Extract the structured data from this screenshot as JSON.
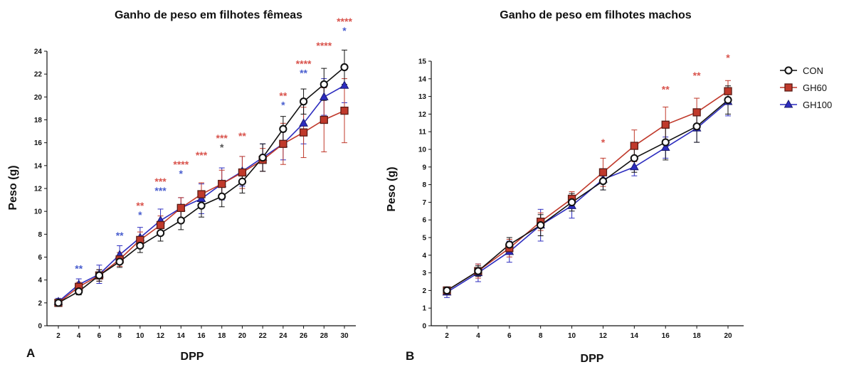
{
  "colors": {
    "con": "#111111",
    "gh60": "#c0392b",
    "gh100": "#2c2cbf",
    "sig_red": "#d9544d",
    "sig_blue": "#4a5fcf",
    "sig_dark": "#555555"
  },
  "legend": {
    "items": [
      {
        "name": "CON",
        "marker": "circle-open",
        "color": "#111111"
      },
      {
        "name": "GH60",
        "marker": "square",
        "color": "#c0392b"
      },
      {
        "name": "GH100",
        "marker": "triangle",
        "color": "#2c2cbf"
      }
    ]
  },
  "chart_data": [
    {
      "type": "line",
      "panel": "A",
      "title": "Ganho de peso em filhotes fêmeas",
      "xlabel": "DPP",
      "ylabel": "Peso (g)",
      "x": [
        2,
        4,
        6,
        8,
        10,
        12,
        14,
        16,
        18,
        20,
        22,
        24,
        26,
        28,
        30
      ],
      "ylim": [
        0,
        24
      ],
      "yticks": [
        0,
        2,
        4,
        6,
        8,
        10,
        12,
        14,
        16,
        18,
        20,
        22,
        24
      ],
      "series": [
        {
          "name": "CON",
          "values": [
            2.0,
            3.0,
            4.4,
            5.6,
            7.0,
            8.1,
            9.2,
            10.5,
            11.3,
            12.6,
            14.7,
            17.2,
            19.6,
            21.1,
            22.6
          ],
          "errors": [
            0.3,
            0.3,
            0.5,
            0.5,
            0.6,
            0.7,
            0.8,
            1.0,
            0.9,
            1.0,
            1.2,
            1.1,
            1.1,
            1.4,
            1.5
          ]
        },
        {
          "name": "GH60",
          "values": [
            2.0,
            3.4,
            4.4,
            5.8,
            7.5,
            8.8,
            10.3,
            11.5,
            12.4,
            13.4,
            14.5,
            15.9,
            16.9,
            18.0,
            18.8
          ],
          "errors": [
            0.3,
            0.4,
            0.5,
            0.6,
            0.7,
            0.8,
            0.9,
            1.0,
            1.2,
            1.4,
            1.0,
            1.8,
            2.2,
            2.8,
            2.8
          ]
        },
        {
          "name": "GH100",
          "values": [
            2.1,
            3.6,
            4.5,
            6.2,
            7.7,
            9.2,
            10.3,
            11.1,
            12.4,
            13.5,
            14.7,
            15.9,
            17.7,
            20.0,
            21.0
          ],
          "errors": [
            0.3,
            0.5,
            0.8,
            0.8,
            0.9,
            1.0,
            0.9,
            1.3,
            1.4,
            1.3,
            1.2,
            1.4,
            1.8,
            1.6,
            1.5
          ]
        }
      ],
      "annotations": [
        {
          "x": 4,
          "y": 4.7,
          "stars": [
            "**"
          ],
          "colors": [
            "sig_blue"
          ]
        },
        {
          "x": 8,
          "y": 7.6,
          "stars": [
            "**"
          ],
          "colors": [
            "sig_blue"
          ]
        },
        {
          "x": 10,
          "y": 10.2,
          "stars": [
            "**",
            "*"
          ],
          "colors": [
            "sig_red",
            "sig_blue"
          ]
        },
        {
          "x": 12,
          "y": 12.3,
          "stars": [
            "***",
            "***"
          ],
          "colors": [
            "sig_red",
            "sig_blue"
          ]
        },
        {
          "x": 14,
          "y": 13.8,
          "stars": [
            "****",
            "*"
          ],
          "colors": [
            "sig_red",
            "sig_blue"
          ]
        },
        {
          "x": 16,
          "y": 14.6,
          "stars": [
            "***"
          ],
          "colors": [
            "sig_red"
          ]
        },
        {
          "x": 18,
          "y": 16.1,
          "stars": [
            "***",
            "*"
          ],
          "colors": [
            "sig_red",
            "sig_dark"
          ]
        },
        {
          "x": 20,
          "y": 16.3,
          "stars": [
            "**"
          ],
          "colors": [
            "sig_red"
          ]
        },
        {
          "x": 24,
          "y": 19.8,
          "stars": [
            "**",
            "*"
          ],
          "colors": [
            "sig_red",
            "sig_blue"
          ]
        },
        {
          "x": 26,
          "y": 22.6,
          "stars": [
            "****",
            "**"
          ],
          "colors": [
            "sig_red",
            "sig_blue"
          ]
        },
        {
          "x": 28,
          "y": 24.2,
          "stars": [
            "****"
          ],
          "colors": [
            "sig_red"
          ]
        },
        {
          "x": 30,
          "y": 26.3,
          "stars": [
            "****",
            "*"
          ],
          "colors": [
            "sig_red",
            "sig_blue"
          ]
        }
      ]
    },
    {
      "type": "line",
      "panel": "B",
      "title": "Ganho de peso em filhotes machos",
      "xlabel": "DPP",
      "ylabel": "Peso (g)",
      "x": [
        2,
        4,
        6,
        8,
        10,
        12,
        14,
        16,
        18,
        20
      ],
      "ylim": [
        0,
        15
      ],
      "yticks": [
        0,
        1,
        2,
        3,
        4,
        5,
        6,
        7,
        8,
        9,
        10,
        11,
        12,
        13,
        14,
        15
      ],
      "series": [
        {
          "name": "CON",
          "values": [
            2.0,
            3.1,
            4.6,
            5.7,
            7.0,
            8.2,
            9.5,
            10.4,
            11.3,
            12.8
          ],
          "errors": [
            0.2,
            0.3,
            0.4,
            0.6,
            0.5,
            0.5,
            0.8,
            1.0,
            0.9,
            0.8
          ]
        },
        {
          "name": "GH60",
          "values": [
            2.0,
            3.1,
            4.4,
            5.9,
            7.2,
            8.7,
            10.2,
            11.4,
            12.1,
            13.3
          ],
          "errors": [
            0.2,
            0.4,
            0.5,
            0.5,
            0.4,
            0.8,
            0.9,
            1.0,
            0.8,
            0.6
          ]
        },
        {
          "name": "GH100",
          "values": [
            1.9,
            3.0,
            4.2,
            5.7,
            6.8,
            8.3,
            9.0,
            10.1,
            11.2,
            12.7
          ],
          "errors": [
            0.3,
            0.5,
            0.6,
            0.9,
            0.7,
            0.6,
            0.5,
            0.6,
            0.8,
            0.8
          ]
        }
      ],
      "annotations": [
        {
          "x": 12,
          "y": 10.2,
          "stars": [
            "*"
          ],
          "colors": [
            "sig_red"
          ]
        },
        {
          "x": 16,
          "y": 13.2,
          "stars": [
            "**"
          ],
          "colors": [
            "sig_red"
          ]
        },
        {
          "x": 18,
          "y": 14.0,
          "stars": [
            "**"
          ],
          "colors": [
            "sig_red"
          ]
        },
        {
          "x": 20,
          "y": 15.0,
          "stars": [
            "*"
          ],
          "colors": [
            "sig_red"
          ]
        }
      ]
    }
  ]
}
